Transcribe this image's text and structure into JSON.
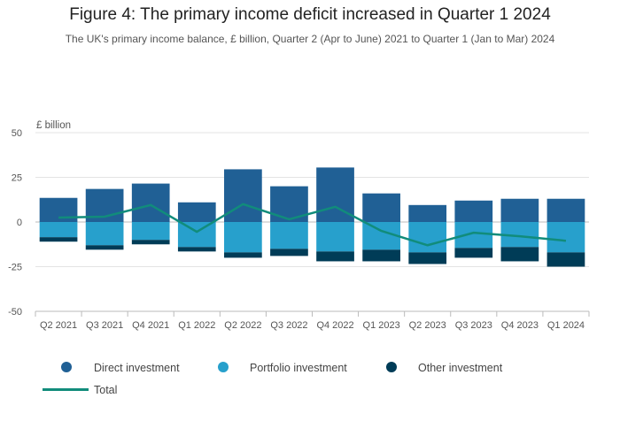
{
  "title": "Figure 4: The primary income deficit increased in Quarter 1 2024",
  "subtitle": "The UK's primary income balance, £ billion, Quarter 2 (Apr to June) 2021 to Quarter 1 (Jan to Mar) 2024",
  "chart_data": {
    "type": "bar",
    "stacked": true,
    "title": "Figure 4: The primary income deficit increased in Quarter 1 2024",
    "subtitle": "The UK's primary income balance, £ billion, Quarter 2 (Apr to June) 2021 to Quarter 1 (Jan to Mar) 2024",
    "ylabel": "£ billion",
    "xlabel": "",
    "ylim": [
      -50,
      50
    ],
    "yticks": [
      50,
      25,
      0,
      -25,
      -50
    ],
    "grid": true,
    "legend_position": "bottom",
    "categories": [
      "Q2 2021",
      "Q3 2021",
      "Q4 2021",
      "Q1 2022",
      "Q2 2022",
      "Q3 2022",
      "Q4 2022",
      "Q1 2023",
      "Q2 2023",
      "Q3 2023",
      "Q4 2023",
      "Q1 2024"
    ],
    "series": [
      {
        "name": "Direct investment",
        "type": "bar",
        "color": "#206095",
        "values": [
          13.5,
          18.5,
          21.5,
          11,
          29.5,
          20,
          30.5,
          16,
          9.5,
          12,
          13,
          13
        ]
      },
      {
        "name": "Portfolio investment",
        "type": "bar",
        "color": "#27a0cc",
        "values": [
          -8.5,
          -13,
          -10,
          -14,
          -17,
          -15,
          -16.5,
          -15.5,
          -17,
          -14.5,
          -14,
          -17
        ]
      },
      {
        "name": "Other investment",
        "type": "bar",
        "color": "#003c57",
        "values": [
          -2.5,
          -2.5,
          -2.5,
          -2.5,
          -3,
          -4,
          -5.5,
          -6.5,
          -6.5,
          -5.5,
          -8,
          -8
        ]
      },
      {
        "name": "Total",
        "type": "line",
        "color": "#118c7b",
        "values": [
          2.5,
          3,
          9.5,
          -5.5,
          10,
          1.5,
          8.5,
          -5,
          -13,
          -6,
          -8,
          -10.5
        ]
      }
    ]
  }
}
